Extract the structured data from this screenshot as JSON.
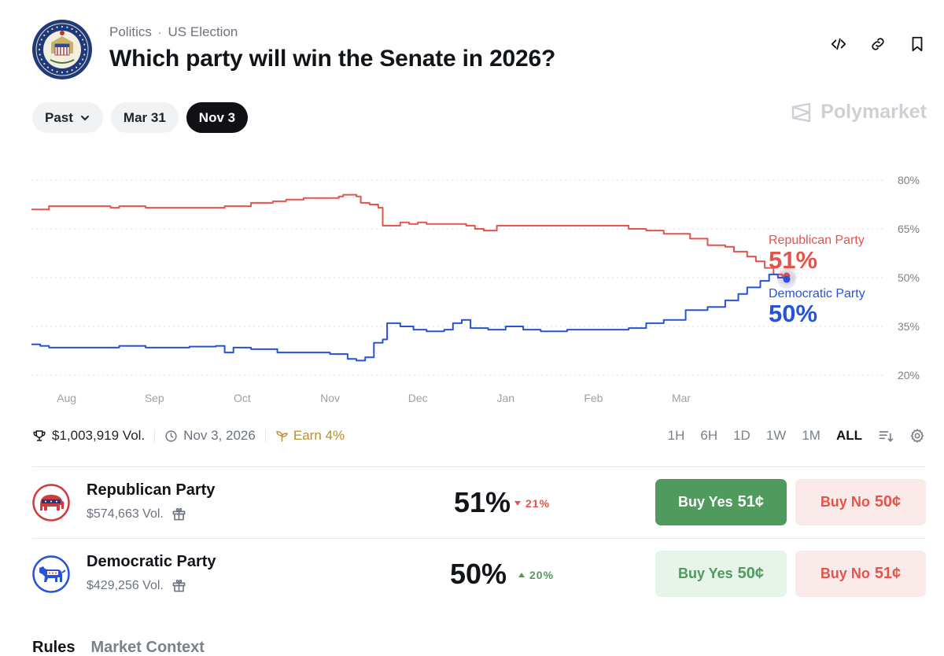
{
  "header": {
    "seal_text": "UNITED STATES SENATE",
    "category": "Politics",
    "separator": "·",
    "subcategory": "US Election",
    "title": "Which party will win the Senate in 2026?"
  },
  "top_icons": [
    "embed-icon",
    "link-icon",
    "bookmark-icon"
  ],
  "date_filters": {
    "past_label": "Past",
    "options": [
      "Mar 31",
      "Nov 3"
    ],
    "selected": "Nov 3"
  },
  "brand": {
    "name": "Polymarket"
  },
  "chart_data": {
    "type": "line",
    "x_ticks": [
      "Aug",
      "Sep",
      "Oct",
      "Nov",
      "Dec",
      "Jan",
      "Feb",
      "Mar"
    ],
    "y_ticks": [
      "80%",
      "65%",
      "50%",
      "35%",
      "20%"
    ],
    "ylim": [
      20,
      80
    ],
    "x_range": [
      0,
      8.6
    ],
    "grid": true,
    "series": [
      {
        "name": "Republican Party",
        "color": "#e5534b",
        "current_label": "51%",
        "points": [
          [
            0,
            71
          ],
          [
            0.1,
            71
          ],
          [
            0.2,
            72
          ],
          [
            0.5,
            72
          ],
          [
            0.9,
            71.5
          ],
          [
            1.0,
            72
          ],
          [
            1.3,
            71.5
          ],
          [
            1.5,
            71.5
          ],
          [
            1.8,
            71.5
          ],
          [
            2.2,
            72
          ],
          [
            2.4,
            72
          ],
          [
            2.5,
            73
          ],
          [
            2.75,
            73.5
          ],
          [
            2.9,
            74
          ],
          [
            3.1,
            74.5
          ],
          [
            3.3,
            74.5
          ],
          [
            3.5,
            75
          ],
          [
            3.55,
            75.5
          ],
          [
            3.7,
            75
          ],
          [
            3.75,
            73
          ],
          [
            3.85,
            72.5
          ],
          [
            3.95,
            71.5
          ],
          [
            4.0,
            66
          ],
          [
            4.1,
            66
          ],
          [
            4.2,
            67
          ],
          [
            4.3,
            66.5
          ],
          [
            4.4,
            67
          ],
          [
            4.5,
            66.5
          ],
          [
            4.8,
            66.5
          ],
          [
            4.95,
            66
          ],
          [
            5.05,
            65
          ],
          [
            5.15,
            64.5
          ],
          [
            5.3,
            66
          ],
          [
            5.8,
            66
          ],
          [
            6.0,
            66
          ],
          [
            6.3,
            66
          ],
          [
            6.5,
            66
          ],
          [
            6.8,
            65
          ],
          [
            7.0,
            64.5
          ],
          [
            7.2,
            63.5
          ],
          [
            7.5,
            62
          ],
          [
            7.7,
            60
          ],
          [
            7.9,
            59.5
          ],
          [
            8.0,
            58
          ],
          [
            8.15,
            56.5
          ],
          [
            8.25,
            55
          ],
          [
            8.35,
            53
          ],
          [
            8.45,
            51
          ],
          [
            8.55,
            50.5
          ],
          [
            8.6,
            50.5
          ]
        ]
      },
      {
        "name": "Democratic Party",
        "color": "#2653d9",
        "current_label": "50%",
        "points": [
          [
            0,
            29.5
          ],
          [
            0.1,
            29
          ],
          [
            0.2,
            28.5
          ],
          [
            0.5,
            28.5
          ],
          [
            1.0,
            29
          ],
          [
            1.3,
            28.5
          ],
          [
            1.8,
            28.8
          ],
          [
            2.1,
            29
          ],
          [
            2.2,
            27
          ],
          [
            2.3,
            28.5
          ],
          [
            2.5,
            28
          ],
          [
            2.8,
            27
          ],
          [
            3.2,
            27
          ],
          [
            3.4,
            26.5
          ],
          [
            3.5,
            26.5
          ],
          [
            3.6,
            25
          ],
          [
            3.7,
            24.5
          ],
          [
            3.8,
            25.5
          ],
          [
            3.9,
            30
          ],
          [
            4.0,
            31
          ],
          [
            4.05,
            36
          ],
          [
            4.2,
            35
          ],
          [
            4.35,
            34
          ],
          [
            4.5,
            33.5
          ],
          [
            4.7,
            34
          ],
          [
            4.8,
            36
          ],
          [
            4.9,
            37
          ],
          [
            5.0,
            34.5
          ],
          [
            5.2,
            34
          ],
          [
            5.4,
            35
          ],
          [
            5.6,
            34
          ],
          [
            5.8,
            33.5
          ],
          [
            6.1,
            34
          ],
          [
            6.5,
            34
          ],
          [
            6.8,
            34.5
          ],
          [
            7.0,
            36
          ],
          [
            7.2,
            37
          ],
          [
            7.45,
            40
          ],
          [
            7.7,
            41
          ],
          [
            7.9,
            43
          ],
          [
            8.05,
            45
          ],
          [
            8.15,
            47
          ],
          [
            8.3,
            49
          ],
          [
            8.4,
            51
          ],
          [
            8.5,
            50
          ],
          [
            8.6,
            49.5
          ]
        ]
      }
    ]
  },
  "stats": {
    "volume": "$1,003,919 Vol.",
    "end_date": "Nov 3, 2026",
    "earn": "Earn 4%"
  },
  "ranges": {
    "options": [
      "1H",
      "6H",
      "1D",
      "1W",
      "1M",
      "ALL"
    ],
    "selected": "ALL"
  },
  "outcomes": [
    {
      "name": "Republican Party",
      "volume": "$574,663 Vol.",
      "percent": "51%",
      "change": "21%",
      "change_direction": "down",
      "buy_yes_label": "Buy Yes",
      "buy_yes_price": "51¢",
      "buy_no_label": "Buy No",
      "buy_no_price": "50¢"
    },
    {
      "name": "Democratic Party",
      "volume": "$429,256 Vol.",
      "percent": "50%",
      "change": "20%",
      "change_direction": "up",
      "buy_yes_label": "Buy Yes",
      "buy_yes_price": "50¢",
      "buy_no_label": "Buy No",
      "buy_no_price": "51¢"
    }
  ],
  "tabs": [
    "Rules",
    "Market Context"
  ],
  "colors": {
    "republican": "#e5534b",
    "democrat": "#2653d9",
    "buy_yes_active": "#4f9a5c",
    "buy_yes_soft": "#e6f4e9",
    "buy_no_soft": "#fbeaea",
    "earn": "#b7912a"
  }
}
